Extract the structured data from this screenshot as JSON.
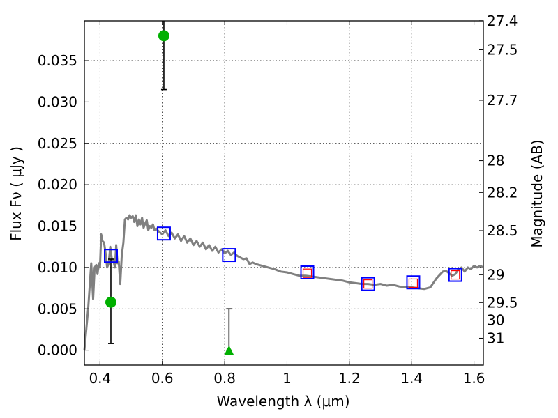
{
  "chart_data": {
    "type": "scatter",
    "xlabel": "Wavelength  λ (μm)",
    "ylabel": "Flux  Fν  ( μJy )",
    "ylabel_right": "Magnitude (AB)",
    "xlim": [
      0.35,
      1.63
    ],
    "ylim": [
      -0.0018,
      0.0398
    ],
    "grid": true,
    "x_ticks": [
      {
        "value": 0.4,
        "label": "0.4"
      },
      {
        "value": 0.6,
        "label": "0.6"
      },
      {
        "value": 0.8,
        "label": "0.8"
      },
      {
        "value": 1.0,
        "label": "1"
      },
      {
        "value": 1.2,
        "label": "1.2"
      },
      {
        "value": 1.4,
        "label": "1.4"
      },
      {
        "value": 1.6,
        "label": "1.6"
      }
    ],
    "y_ticks": [
      {
        "value": 0.0,
        "label": "0.000"
      },
      {
        "value": 0.005,
        "label": "0.005"
      },
      {
        "value": 0.01,
        "label": "0.010"
      },
      {
        "value": 0.015,
        "label": "0.015"
      },
      {
        "value": 0.02,
        "label": "0.020"
      },
      {
        "value": 0.025,
        "label": "0.025"
      },
      {
        "value": 0.03,
        "label": "0.030"
      },
      {
        "value": 0.035,
        "label": "0.035"
      }
    ],
    "mag_ticks": [
      {
        "value": 27.4,
        "label": "27.4"
      },
      {
        "value": 27.5,
        "label": "27.5"
      },
      {
        "value": 27.7,
        "label": "27.7"
      },
      {
        "value": 28.0,
        "label": "28"
      },
      {
        "value": 28.2,
        "label": "28.2"
      },
      {
        "value": 28.5,
        "label": "28.5"
      },
      {
        "value": 29.0,
        "label": "29"
      },
      {
        "value": 29.5,
        "label": "29.5"
      },
      {
        "value": 30.0,
        "label": "30"
      },
      {
        "value": 31.0,
        "label": "31"
      }
    ],
    "model_sed": {
      "color": "#808080",
      "x": [
        0.35,
        0.362,
        0.372,
        0.378,
        0.383,
        0.388,
        0.392,
        0.396,
        0.4,
        0.404,
        0.408,
        0.413,
        0.418,
        0.423,
        0.428,
        0.433,
        0.438,
        0.443,
        0.448,
        0.452,
        0.456,
        0.46,
        0.465,
        0.47,
        0.475,
        0.48,
        0.485,
        0.49,
        0.495,
        0.5,
        0.505,
        0.51,
        0.515,
        0.52,
        0.525,
        0.53,
        0.535,
        0.54,
        0.545,
        0.55,
        0.555,
        0.56,
        0.565,
        0.57,
        0.575,
        0.58,
        0.59,
        0.6,
        0.61,
        0.62,
        0.63,
        0.64,
        0.65,
        0.66,
        0.67,
        0.68,
        0.69,
        0.7,
        0.71,
        0.72,
        0.73,
        0.74,
        0.75,
        0.76,
        0.77,
        0.78,
        0.79,
        0.8,
        0.81,
        0.82,
        0.83,
        0.84,
        0.85,
        0.86,
        0.87,
        0.88,
        0.89,
        0.9,
        0.92,
        0.94,
        0.96,
        0.98,
        1.0,
        1.02,
        1.04,
        1.06,
        1.08,
        1.1,
        1.12,
        1.14,
        1.16,
        1.18,
        1.2,
        1.22,
        1.24,
        1.26,
        1.28,
        1.3,
        1.32,
        1.34,
        1.36,
        1.38,
        1.4,
        1.42,
        1.44,
        1.46,
        1.48,
        1.5,
        1.51,
        1.52,
        1.53,
        1.54,
        1.55,
        1.56,
        1.57,
        1.58,
        1.59,
        1.6,
        1.61,
        1.62,
        1.63
      ],
      "y": [
        0.0,
        0.005,
        0.0105,
        0.0062,
        0.01,
        0.0103,
        0.0092,
        0.0105,
        0.01,
        0.014,
        0.0132,
        0.013,
        0.0117,
        0.01,
        0.0105,
        0.0125,
        0.011,
        0.0108,
        0.01,
        0.0127,
        0.0105,
        0.0107,
        0.008,
        0.0115,
        0.013,
        0.0158,
        0.016,
        0.0158,
        0.0163,
        0.016,
        0.0162,
        0.0155,
        0.0163,
        0.015,
        0.0158,
        0.0152,
        0.016,
        0.0148,
        0.0153,
        0.0157,
        0.0145,
        0.015,
        0.0148,
        0.0152,
        0.0145,
        0.0147,
        0.0143,
        0.014,
        0.0145,
        0.0138,
        0.0142,
        0.0135,
        0.014,
        0.0132,
        0.0138,
        0.013,
        0.0135,
        0.0127,
        0.0132,
        0.0125,
        0.013,
        0.0122,
        0.0127,
        0.012,
        0.0125,
        0.0118,
        0.0122,
        0.0117,
        0.012,
        0.0115,
        0.0118,
        0.0114,
        0.0112,
        0.011,
        0.0111,
        0.0104,
        0.0106,
        0.0104,
        0.0102,
        0.01,
        0.0098,
        0.0095,
        0.0094,
        0.0092,
        0.009,
        0.009,
        0.0089,
        0.0088,
        0.0087,
        0.0086,
        0.0085,
        0.0084,
        0.0082,
        0.0081,
        0.008,
        0.008,
        0.0079,
        0.008,
        0.0078,
        0.0079,
        0.0077,
        0.0076,
        0.0076,
        0.0075,
        0.0074,
        0.0076,
        0.0087,
        0.0095,
        0.0096,
        0.0093,
        0.009,
        0.0092,
        0.0098,
        0.01,
        0.0095,
        0.01,
        0.0098,
        0.0102,
        0.01,
        0.0102,
        0.01
      ]
    },
    "model_photometry": {
      "marker": "open-square",
      "color": "#0000ff",
      "points": [
        {
          "x": 0.435,
          "y": 0.0114
        },
        {
          "x": 0.605,
          "y": 0.0141
        },
        {
          "x": 0.814,
          "y": 0.0115
        },
        {
          "x": 1.065,
          "y": 0.0094
        },
        {
          "x": 1.26,
          "y": 0.008
        },
        {
          "x": 1.405,
          "y": 0.0082
        },
        {
          "x": 1.54,
          "y": 0.0091
        }
      ]
    },
    "observed_ir": {
      "marker": "open-square",
      "color": "#ff0000",
      "points": [
        {
          "x": 1.065,
          "y": 0.0093
        },
        {
          "x": 1.26,
          "y": 0.008
        },
        {
          "x": 1.405,
          "y": 0.0081
        },
        {
          "x": 1.54,
          "y": 0.0091
        }
      ]
    },
    "observed_optical": {
      "marker": "filled-circle",
      "color": "#00b000",
      "points": [
        {
          "x": 0.435,
          "y": 0.0058,
          "err_low": 0.0008,
          "err_high": 0.011
        },
        {
          "x": 0.605,
          "y": 0.038,
          "err_low": 0.0315,
          "err_high": 0.04
        }
      ]
    },
    "upper_limit": {
      "marker": "filled-triangle",
      "color": "#00b000",
      "points": [
        {
          "x": 0.814,
          "y": 0.0,
          "err_low": 0.0,
          "err_high": 0.005
        }
      ]
    },
    "zero_line": {
      "y": 0.0,
      "style": "dash-dot",
      "color": "#000000"
    }
  }
}
